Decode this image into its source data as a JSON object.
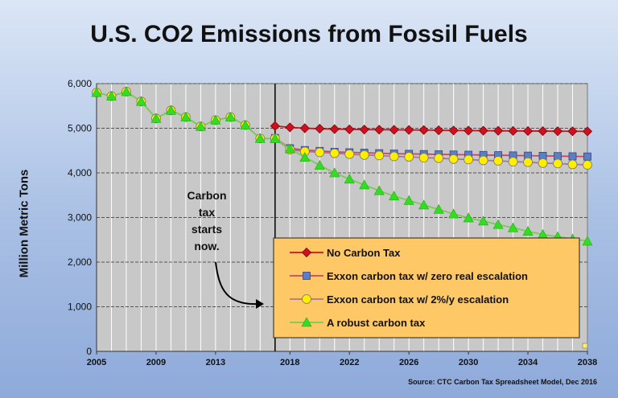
{
  "chart_data": {
    "type": "line",
    "title": "U.S. CO2 Emissions from Fossil Fuels",
    "ylabel": "Million Metric Tons",
    "ylim": [
      0,
      6000
    ],
    "xlim": [
      2005,
      2038
    ],
    "y_ticks": [
      "0",
      "1,000",
      "2,000",
      "3,000",
      "4,000",
      "5,000",
      "6,000"
    ],
    "x_ticks": [
      "2005",
      "2009",
      "2013",
      "2018",
      "2022",
      "2026",
      "2030",
      "2034",
      "2038"
    ],
    "grid": true,
    "legend_placement": "bottom-right",
    "source": "Source:  CTC Carbon Tax Spreadsheet Model, Dec 2016",
    "vertical_marker_x": 2017,
    "annotation": {
      "lines": [
        "Carbon",
        "tax",
        "starts",
        "now."
      ]
    },
    "historical": {
      "x": [
        2005,
        2006,
        2007,
        2008,
        2009,
        2010,
        2011,
        2012,
        2013,
        2014,
        2015,
        2016,
        2017
      ],
      "values": [
        5800,
        5720,
        5820,
        5600,
        5220,
        5400,
        5250,
        5040,
        5180,
        5250,
        5070,
        4770,
        4770
      ]
    },
    "series": [
      {
        "name": "No Carbon Tax",
        "color": "#cc1122",
        "marker": "diamond",
        "x": [
          2017,
          2018,
          2019,
          2020,
          2021,
          2022,
          2023,
          2024,
          2025,
          2026,
          2027,
          2028,
          2029,
          2030,
          2031,
          2032,
          2033,
          2034,
          2035,
          2036,
          2037,
          2038
        ],
        "values": [
          5050,
          5020,
          5000,
          4990,
          4980,
          4975,
          4970,
          4968,
          4965,
          4962,
          4960,
          4955,
          4950,
          4948,
          4945,
          4943,
          4940,
          4938,
          4936,
          4934,
          4932,
          4930
        ]
      },
      {
        "name": "Exxon carbon tax w/ zero real escalation",
        "color": "#5b7fc4",
        "marker": "square",
        "x": [
          2017,
          2018,
          2019,
          2020,
          2021,
          2022,
          2023,
          2024,
          2025,
          2026,
          2027,
          2028,
          2029,
          2030,
          2031,
          2032,
          2033,
          2034,
          2035,
          2036,
          2037,
          2038
        ],
        "values": [
          4780,
          4550,
          4510,
          4490,
          4470,
          4460,
          4450,
          4440,
          4430,
          4425,
          4420,
          4415,
          4410,
          4405,
          4400,
          4395,
          4390,
          4385,
          4380,
          4375,
          4370,
          4365
        ]
      },
      {
        "name": "Exxon carbon tax w/ 2%/y escalation",
        "color": "#ffee00",
        "marker": "circle",
        "x": [
          2017,
          2018,
          2019,
          2020,
          2021,
          2022,
          2023,
          2024,
          2025,
          2026,
          2027,
          2028,
          2029,
          2030,
          2031,
          2032,
          2033,
          2034,
          2035,
          2036,
          2037,
          2038
        ],
        "values": [
          4770,
          4520,
          4480,
          4460,
          4440,
          4420,
          4400,
          4390,
          4370,
          4360,
          4340,
          4330,
          4310,
          4300,
          4280,
          4270,
          4250,
          4240,
          4220,
          4210,
          4190,
          4180
        ]
      },
      {
        "name": "A robust carbon tax",
        "color": "#33dd22",
        "marker": "triangle",
        "x": [
          2017,
          2018,
          2019,
          2020,
          2021,
          2022,
          2023,
          2024,
          2025,
          2026,
          2027,
          2028,
          2029,
          2030,
          2031,
          2032,
          2033,
          2034,
          2035,
          2036,
          2037,
          2038
        ],
        "values": [
          4770,
          4540,
          4350,
          4170,
          4000,
          3860,
          3730,
          3600,
          3480,
          3380,
          3280,
          3180,
          3080,
          2990,
          2920,
          2840,
          2770,
          2690,
          2620,
          2570,
          2520,
          2470
        ]
      }
    ]
  }
}
